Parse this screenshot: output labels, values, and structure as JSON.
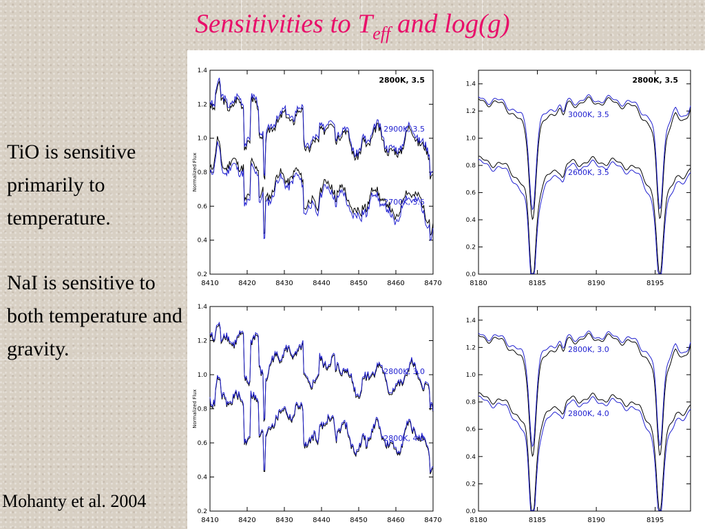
{
  "slide": {
    "title_main": "Sensitivities to T",
    "title_sub": "eff",
    "title_end": " and log(g)",
    "text_tio": "TiO is sensitive primarily to temperature.",
    "text_nai": "NaI is sensitive to both temperature and gravity.",
    "citation": "Mohanty et al. 2004"
  },
  "chart_data": [
    {
      "type": "line",
      "id": "tio-teff",
      "ylabel": "Normalized Flux",
      "xlim": [
        8410,
        8470
      ],
      "ylim": [
        0.2,
        1.4
      ],
      "xticks": [
        "8410",
        "8420",
        "8430",
        "8440",
        "8450",
        "8460",
        "8470"
      ],
      "yticks": [
        "0.2",
        "0.4",
        "0.6",
        "0.8",
        "1.0",
        "1.2",
        "1.4"
      ],
      "series": [
        {
          "name": "2800K, 3.5",
          "color": "#000000",
          "offset": "upper"
        },
        {
          "name": "2900K, 3.5",
          "color": "#2020d0",
          "offset": "upper"
        },
        {
          "name": "2800K, 3.5",
          "color": "#000000",
          "offset": "lower"
        },
        {
          "name": "2700K, 3.5",
          "color": "#2020d0",
          "offset": "lower"
        }
      ],
      "labels": [
        {
          "text": "2800K, 3.5",
          "color": "#000000"
        },
        {
          "text": "2900K, 3.5",
          "color": "#2020d0"
        },
        {
          "text": "2700K, 3.5",
          "color": "#2020d0"
        }
      ]
    },
    {
      "type": "line",
      "id": "nai-teff",
      "ylabel": "",
      "xlim": [
        8180,
        8198
      ],
      "ylim": [
        0.0,
        1.5
      ],
      "xticks": [
        "8180",
        "8185",
        "8190",
        "8195"
      ],
      "yticks": [
        "0.0",
        "0.2",
        "0.4",
        "0.6",
        "0.8",
        "1.0",
        "1.2",
        "1.4"
      ],
      "series": [
        {
          "name": "2800K, 3.5",
          "color": "#000000",
          "offset": "upper"
        },
        {
          "name": "3000K, 3.5",
          "color": "#2020d0",
          "offset": "upper"
        },
        {
          "name": "2800K, 3.5",
          "color": "#000000",
          "offset": "lower"
        },
        {
          "name": "2600K, 3.5",
          "color": "#2020d0",
          "offset": "lower"
        }
      ],
      "labels": [
        {
          "text": "2800K, 3.5",
          "color": "#000000"
        },
        {
          "text": "3000K, 3.5",
          "color": "#2020d0"
        },
        {
          "text": "2600K, 3.5",
          "color": "#2020d0"
        }
      ]
    },
    {
      "type": "line",
      "id": "tio-logg",
      "ylabel": "Normalized Flux",
      "xlim": [
        8410,
        8470
      ],
      "ylim": [
        0.2,
        1.4
      ],
      "xticks": [
        "8410",
        "8420",
        "8430",
        "8440",
        "8450",
        "8460",
        "8470"
      ],
      "yticks": [
        "0.2",
        "0.4",
        "0.6",
        "0.8",
        "1.0",
        "1.2",
        "1.4"
      ],
      "series": [
        {
          "name": "2800K, 3.5",
          "color": "#000000",
          "offset": "upper"
        },
        {
          "name": "2800K, 3.0",
          "color": "#2020d0",
          "offset": "upper"
        },
        {
          "name": "2800K, 3.5",
          "color": "#000000",
          "offset": "lower"
        },
        {
          "name": "2800K, 4.0",
          "color": "#2020d0",
          "offset": "lower"
        }
      ],
      "labels": [
        {
          "text": "2800K, 3.0",
          "color": "#2020d0"
        },
        {
          "text": "2800K, 4.0",
          "color": "#2020d0"
        }
      ]
    },
    {
      "type": "line",
      "id": "nai-logg",
      "ylabel": "",
      "xlim": [
        8180,
        8198
      ],
      "ylim": [
        0.0,
        1.5
      ],
      "xticks": [
        "8180",
        "8185",
        "8190",
        "8195"
      ],
      "yticks": [
        "0.0",
        "0.2",
        "0.4",
        "0.6",
        "0.8",
        "1.0",
        "1.2",
        "1.4"
      ],
      "series": [
        {
          "name": "2800K, 3.5",
          "color": "#000000",
          "offset": "upper"
        },
        {
          "name": "2800K, 3.0",
          "color": "#2020d0",
          "offset": "upper"
        },
        {
          "name": "2800K, 3.5",
          "color": "#000000",
          "offset": "lower"
        },
        {
          "name": "2800K, 4.0",
          "color": "#2020d0",
          "offset": "lower"
        }
      ],
      "labels": [
        {
          "text": "2800K, 3.0",
          "color": "#2020d0"
        },
        {
          "text": "2800K, 4.0",
          "color": "#2020d0"
        }
      ]
    }
  ]
}
